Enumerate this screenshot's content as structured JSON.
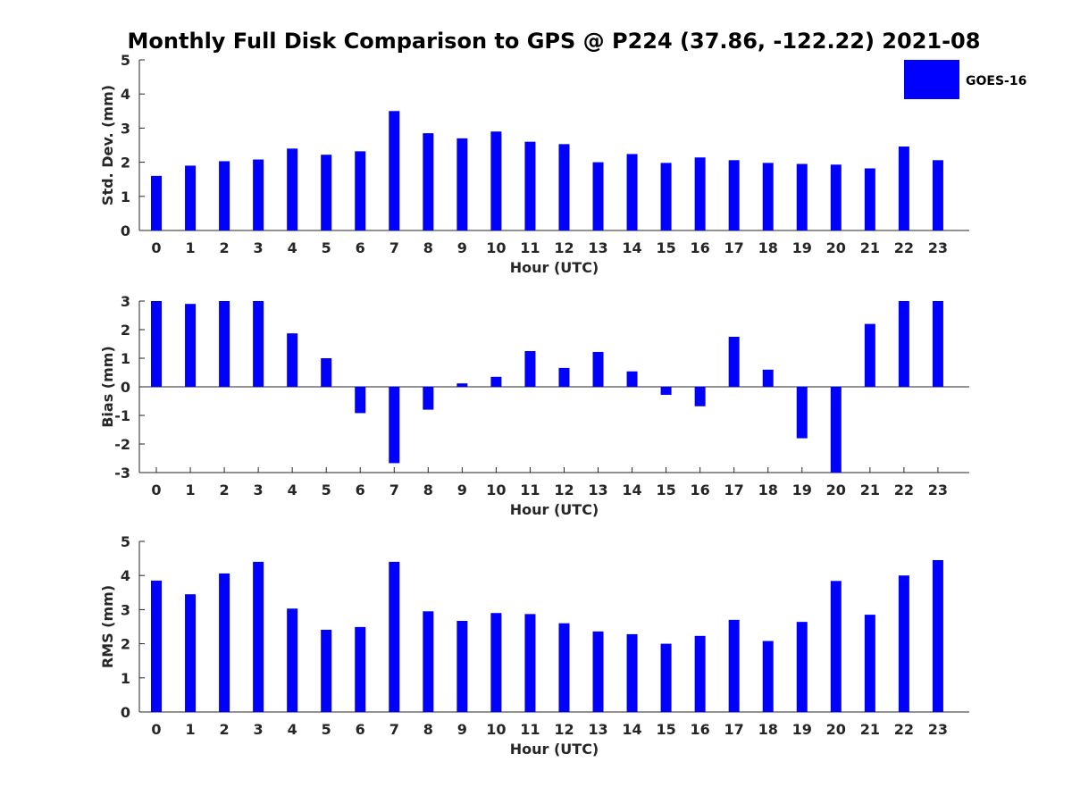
{
  "chart_data": {
    "type": "bar",
    "title": "Monthly Full Disk Comparison to GPS @ P224 (37.86, -122.22) 2021-08",
    "categories": [
      "0",
      "1",
      "2",
      "3",
      "4",
      "5",
      "6",
      "7",
      "8",
      "9",
      "10",
      "11",
      "12",
      "13",
      "14",
      "15",
      "16",
      "17",
      "18",
      "19",
      "20",
      "21",
      "22",
      "23"
    ],
    "legend": {
      "label": "GOES-16",
      "color": "#0000ff",
      "placement": "top-right"
    },
    "subplots": [
      {
        "xlabel": "Hour (UTC)",
        "ylabel": "Std. Dev. (mm)",
        "ylim": [
          0,
          5
        ],
        "yticks": [
          0,
          1,
          2,
          3,
          4,
          5
        ],
        "series": [
          {
            "name": "GOES-16",
            "values": [
              1.6,
              1.9,
              2.03,
              2.08,
              2.4,
              2.22,
              2.32,
              3.5,
              2.85,
              2.7,
              2.9,
              2.6,
              2.53,
              2.0,
              2.24,
              1.98,
              2.14,
              2.06,
              1.98,
              1.95,
              1.93,
              1.82,
              2.46,
              2.06
            ]
          }
        ]
      },
      {
        "xlabel": "Hour (UTC)",
        "ylabel": "Bias (mm)",
        "ylim": [
          -3,
          3
        ],
        "yticks": [
          -3,
          -2,
          -1,
          0,
          1,
          2,
          3
        ],
        "series": [
          {
            "name": "GOES-16",
            "values": [
              3.0,
              2.9,
              3.0,
              3.0,
              1.87,
              1.0,
              -0.92,
              -2.67,
              -0.8,
              0.12,
              0.35,
              1.25,
              0.66,
              1.22,
              0.54,
              -0.28,
              -0.68,
              1.75,
              0.6,
              -1.8,
              -3.0,
              2.2,
              3.0,
              3.0
            ]
          }
        ]
      },
      {
        "xlabel": "Hour (UTC)",
        "ylabel": "RMS (mm)",
        "ylim": [
          0,
          5
        ],
        "yticks": [
          0,
          1,
          2,
          3,
          4,
          5
        ],
        "series": [
          {
            "name": "GOES-16",
            "values": [
              3.85,
              3.45,
              4.06,
              4.4,
              3.03,
              2.41,
              2.49,
              4.4,
              2.95,
              2.67,
              2.9,
              2.87,
              2.6,
              2.36,
              2.28,
              2.0,
              2.23,
              2.7,
              2.08,
              2.64,
              3.84,
              2.85,
              4.0,
              4.45
            ]
          }
        ]
      }
    ]
  }
}
